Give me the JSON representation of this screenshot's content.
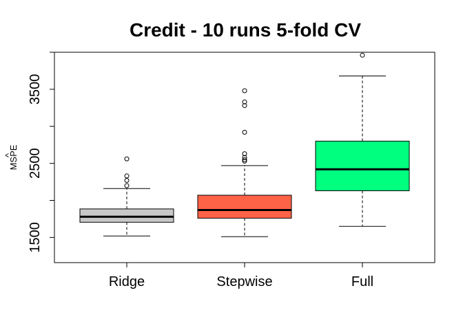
{
  "chart_data": {
    "type": "boxplot",
    "title": "Credit - 10 runs 5-fold CV",
    "ylabel": "MSPE",
    "ylabel_hat": "^",
    "ylim": [
      1160,
      4000
    ],
    "yticks": [
      1500,
      2500,
      3500
    ],
    "ytick_labels": [
      "1500",
      "2500",
      "3500"
    ],
    "minor_yticks": [
      1500,
      2000,
      2500,
      3000,
      3500,
      4000
    ],
    "categories": [
      "Ridge",
      "Stepwise",
      "Full"
    ],
    "boxes": [
      {
        "name": "Ridge",
        "color": "#c8c8c8",
        "whisker_low": 1520,
        "q1": 1705,
        "median": 1780,
        "q3": 1885,
        "whisker_high": 2160,
        "outliers": [
          2200,
          2270,
          2330,
          2560
        ]
      },
      {
        "name": "Stepwise",
        "color": "#ff6347",
        "whisker_low": 1510,
        "q1": 1760,
        "median": 1870,
        "q3": 2070,
        "whisker_high": 2470,
        "outliers": [
          2530,
          2550,
          2580,
          2630,
          2920,
          3280,
          3330,
          3480
        ]
      },
      {
        "name": "Full",
        "color": "#00ff7f",
        "whisker_low": 1650,
        "q1": 2130,
        "median": 2420,
        "q3": 2800,
        "whisker_high": 3680,
        "outliers": [
          3960
        ]
      }
    ]
  }
}
